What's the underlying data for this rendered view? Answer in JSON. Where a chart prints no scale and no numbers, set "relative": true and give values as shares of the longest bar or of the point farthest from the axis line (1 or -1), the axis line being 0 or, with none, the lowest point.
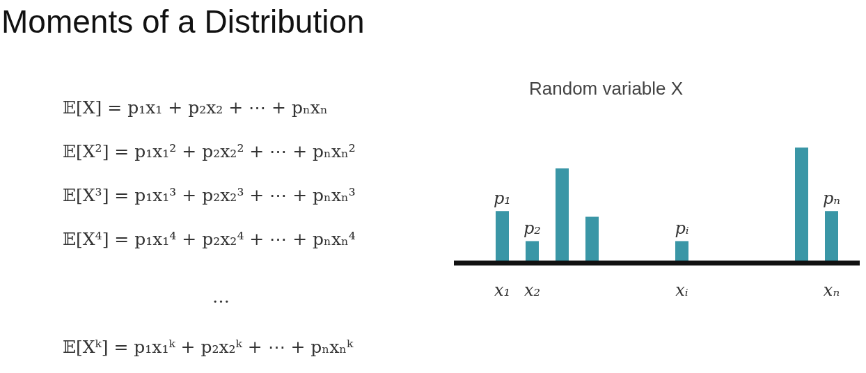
{
  "chart_data": {
    "type": "bar",
    "title": "Moments of a Distribution",
    "subtitle": "Random variable X",
    "categories": [
      "x₁",
      "x₂",
      null,
      null,
      null,
      null,
      "xᵢ",
      null,
      null,
      null,
      null,
      "xₙ"
    ],
    "values": [
      0.45,
      0.19,
      0.82,
      0.4,
      null,
      null,
      0.19,
      null,
      null,
      null,
      1,
      0.45
    ],
    "relative": true,
    "color": "#3a96a6",
    "annotations": [
      "𝔼[X] = p₁x₁ + p₂x₂ + ⋯ + pₙxₙ",
      "𝔼[X²] = p₁x₁² + p₂x₂² + ⋯ + pₙxₙ²",
      "𝔼[X³] = p₁x₁³ + p₂x₂³ + ⋯ + pₙxₙ³",
      "𝔼[X⁴] = p₁x₁⁴ + p₂x₂⁴ + ⋯ + pₙxₙ⁴",
      "…",
      "𝔼[Xᵏ] = p₁x₁ᵏ + p₂x₂ᵏ + ⋯ + pₙxₙᵏ",
      {
        "text": "p₁",
        "x": "x₁",
        "y": 0.45
      },
      {
        "text": "p₂",
        "x": "x₂",
        "y": 0.19
      },
      {
        "text": "pᵢ",
        "x": "xᵢ",
        "y": 0.19
      },
      {
        "text": "pₙ",
        "x": "xₙ",
        "y": 0.45
      }
    ]
  }
}
